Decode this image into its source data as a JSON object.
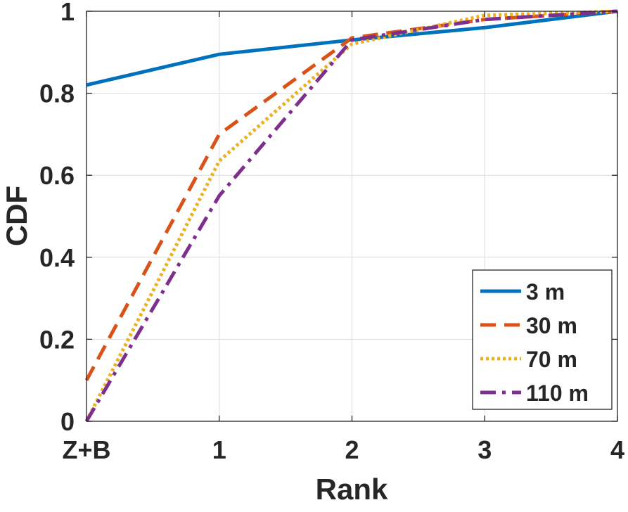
{
  "chart_data": {
    "type": "line",
    "title": "",
    "xlabel": "Rank",
    "ylabel": "CDF",
    "categories": [
      "Z+B",
      "1",
      "2",
      "3",
      "4"
    ],
    "x": [
      0,
      1,
      2,
      3,
      4
    ],
    "xlim": [
      0,
      4
    ],
    "ylim": [
      0,
      1
    ],
    "yticks": [
      0,
      0.2,
      0.4,
      0.6,
      0.8,
      1
    ],
    "ytick_labels": [
      "0",
      "0.2",
      "0.4",
      "0.6",
      "0.8",
      "1"
    ],
    "grid": true,
    "legend_position": "bottom-right",
    "series": [
      {
        "name": "3 m",
        "values": [
          0.82,
          0.895,
          0.93,
          0.96,
          1.0
        ],
        "color": "#0072BD",
        "style": "solid"
      },
      {
        "name": "30 m",
        "values": [
          0.1,
          0.7,
          0.935,
          0.98,
          1.0
        ],
        "color": "#D95319",
        "style": "dashed"
      },
      {
        "name": "70 m",
        "values": [
          0.0,
          0.635,
          0.92,
          0.99,
          1.0
        ],
        "color": "#EDB120",
        "style": "dotted"
      },
      {
        "name": "110 m",
        "values": [
          0.0,
          0.55,
          0.93,
          0.98,
          1.0
        ],
        "color": "#7E2F8E",
        "style": "dashdot"
      }
    ]
  }
}
